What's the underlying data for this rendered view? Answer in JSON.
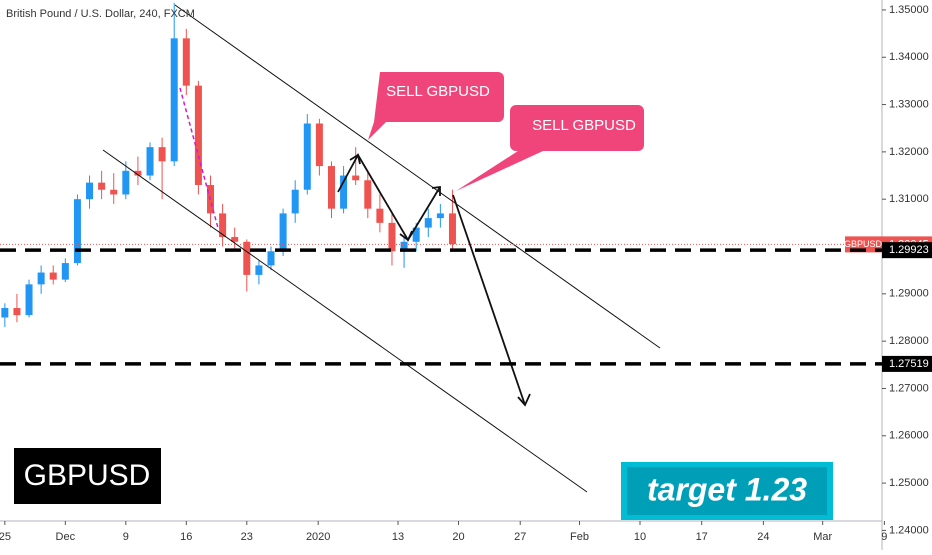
{
  "chart_data": {
    "type": "candlestick",
    "title": "British Pound / U.S. Dollar, 240, FXCM",
    "x": [
      0,
      1,
      2,
      3,
      4,
      5,
      6,
      7,
      8,
      9,
      10,
      11,
      12,
      13,
      14,
      15,
      16,
      17,
      18,
      19,
      20,
      21,
      22,
      23,
      24,
      25,
      26,
      27,
      28,
      29,
      30,
      31,
      32,
      33,
      34,
      35,
      36,
      37
    ],
    "open": [
      1.285,
      1.287,
      1.2855,
      1.292,
      1.2945,
      1.293,
      1.2965,
      1.31,
      1.3135,
      1.312,
      1.311,
      1.316,
      1.315,
      1.321,
      1.318,
      1.344,
      1.334,
      1.313,
      1.307,
      1.302,
      1.301,
      1.294,
      1.296,
      1.299,
      1.307,
      1.312,
      1.326,
      1.317,
      1.308,
      1.315,
      1.314,
      1.308,
      1.305,
      1.299,
      1.301,
      1.304,
      1.306,
      1.307
    ],
    "high": [
      1.288,
      1.29,
      1.293,
      1.296,
      1.296,
      1.2975,
      1.311,
      1.315,
      1.316,
      1.3155,
      1.318,
      1.319,
      1.322,
      1.323,
      1.3515,
      1.346,
      1.335,
      1.315,
      1.309,
      1.304,
      1.3015,
      1.297,
      1.3,
      1.308,
      1.314,
      1.328,
      1.327,
      1.318,
      1.317,
      1.321,
      1.316,
      1.311,
      1.307,
      1.302,
      1.305,
      1.308,
      1.309,
      1.312
    ],
    "low": [
      1.283,
      1.284,
      1.285,
      1.29,
      1.292,
      1.2925,
      1.296,
      1.308,
      1.31,
      1.309,
      1.31,
      1.313,
      1.314,
      1.31,
      1.317,
      1.332,
      1.311,
      1.304,
      1.3,
      1.299,
      1.2905,
      1.292,
      1.295,
      1.298,
      1.305,
      1.311,
      1.315,
      1.306,
      1.307,
      1.313,
      1.306,
      1.303,
      1.296,
      1.2955,
      1.299,
      1.302,
      1.304,
      1.2995
    ],
    "close": [
      1.287,
      1.2855,
      1.292,
      1.2945,
      1.293,
      1.2965,
      1.31,
      1.3135,
      1.312,
      1.311,
      1.316,
      1.315,
      1.321,
      1.318,
      1.344,
      1.334,
      1.313,
      1.307,
      1.302,
      1.301,
      1.294,
      1.296,
      1.299,
      1.307,
      1.312,
      1.326,
      1.317,
      1.308,
      1.315,
      1.314,
      1.308,
      1.305,
      1.299,
      1.301,
      1.304,
      1.306,
      1.307,
      1.3005
    ],
    "up_color": "#2196f3",
    "down_color": "#ef5350",
    "xlim": [
      -0.4,
      73
    ],
    "xticks": [
      {
        "value": 0,
        "label": "25"
      },
      {
        "value": 5,
        "label": "Dec"
      },
      {
        "value": 10,
        "label": "9"
      },
      {
        "value": 15,
        "label": "16"
      },
      {
        "value": 20,
        "label": "23"
      },
      {
        "value": 25.9,
        "label": "2020"
      },
      {
        "value": 32.5,
        "label": "13"
      },
      {
        "value": 37.5,
        "label": "20"
      },
      {
        "value": 42.6,
        "label": "27"
      },
      {
        "value": 47.5,
        "label": "Feb"
      },
      {
        "value": 52.5,
        "label": "10"
      },
      {
        "value": 57.6,
        "label": "17"
      },
      {
        "value": 62.7,
        "label": "24"
      },
      {
        "value": 67.6,
        "label": "Mar"
      },
      {
        "value": 72.7,
        "label": "9"
      }
    ],
    "ylim": [
      1.2422,
      1.3521
    ],
    "yticks": [
      {
        "value": 1.35,
        "label": "1.35000"
      },
      {
        "value": 1.34,
        "label": "1.34000"
      },
      {
        "value": 1.33,
        "label": "1.33000"
      },
      {
        "value": 1.32,
        "label": "1.32000"
      },
      {
        "value": 1.31,
        "label": "1.31000"
      },
      {
        "value": 1.3,
        "label": "1.30000"
      },
      {
        "value": 1.29,
        "label": "1.29000"
      },
      {
        "value": 1.28,
        "label": "1.28000"
      },
      {
        "value": 1.27,
        "label": "1.27000"
      },
      {
        "value": 1.26,
        "label": "1.26000"
      },
      {
        "value": 1.25,
        "label": "1.25000"
      },
      {
        "value": 1.24,
        "label": "1.24000"
      }
    ],
    "symbol": "GBPUSD",
    "last_price": 1.30045,
    "levels": [
      1.29923,
      1.27519
    ],
    "annotations": [
      "SELL GBPUSD",
      "SELL GBPUSD"
    ],
    "badge": "GBPUSD",
    "target": "target 1.23"
  }
}
